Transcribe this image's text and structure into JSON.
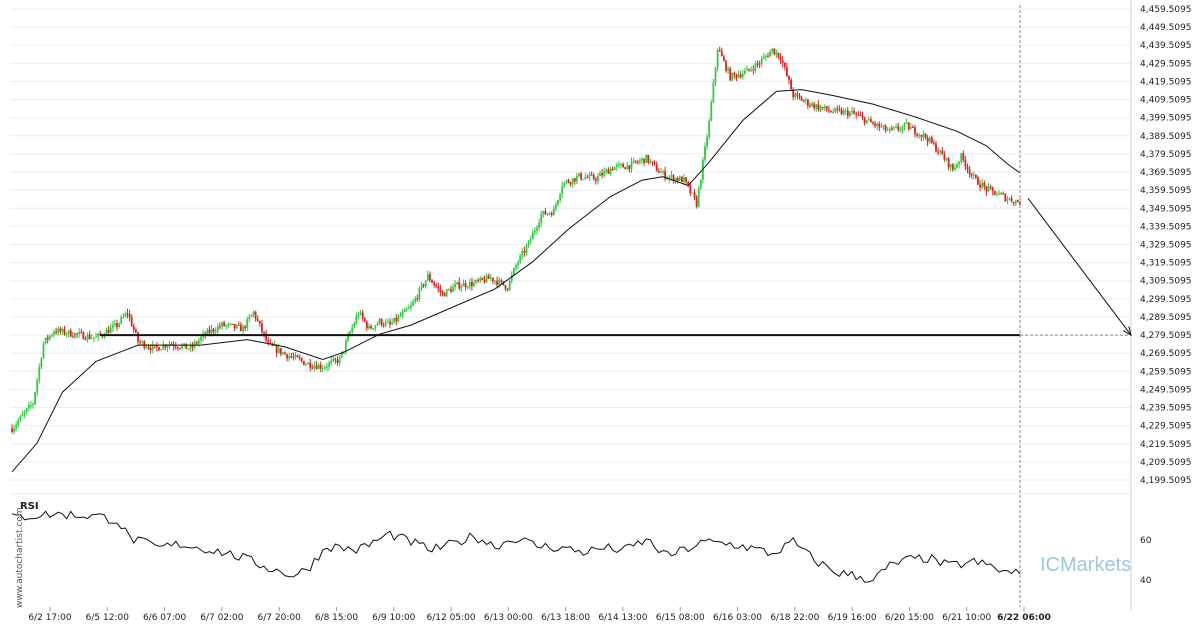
{
  "chart_data": [
    {
      "type": "candlestick",
      "price_axis_labels": [
        "4,459.5095",
        "4,449.5095",
        "4,439.5095",
        "4,429.5095",
        "4,419.5095",
        "4,409.5095",
        "4,399.5095",
        "4,389.5095",
        "4,379.5095",
        "4,369.5095",
        "4,359.5095",
        "4,349.5095",
        "4,339.5095",
        "4,329.5095",
        "4,319.5095",
        "4,309.5095",
        "4,299.5095",
        "4,289.5095",
        "4,279.5095",
        "4,269.5095",
        "4,259.5095",
        "4,249.5095",
        "4,239.5095",
        "4,229.5095",
        "4,219.5095",
        "4,209.5095",
        "4,199.5095"
      ],
      "ylim": [
        4199.5095,
        4459.5095
      ],
      "date_labels": [
        "6/2 17:00",
        "6/5 12:00",
        "6/6 07:00",
        "6/7 02:00",
        "6/7 20:00",
        "6/8 15:00",
        "6/9 10:00",
        "6/12 05:00",
        "6/13 00:00",
        "6/13 18:00",
        "6/14 13:00",
        "6/15 08:00",
        "6/16 03:00",
        "6/18 22:00",
        "6/19 16:00",
        "6/20 15:00",
        "6/21 10:00",
        "6/22 06:00"
      ],
      "current_date_label": "6/22 06:00",
      "price_path": [
        [
          0,
          4228
        ],
        [
          10,
          4242
        ],
        [
          15,
          4275
        ],
        [
          20,
          4282
        ],
        [
          30,
          4280
        ],
        [
          40,
          4278
        ],
        [
          50,
          4285
        ],
        [
          55,
          4292
        ],
        [
          60,
          4276
        ],
        [
          68,
          4272
        ],
        [
          75,
          4275
        ],
        [
          85,
          4272
        ],
        [
          92,
          4280
        ],
        [
          100,
          4285
        ],
        [
          110,
          4283
        ],
        [
          115,
          4292
        ],
        [
          122,
          4274
        ],
        [
          130,
          4269
        ],
        [
          140,
          4264
        ],
        [
          148,
          4262
        ],
        [
          156,
          4266
        ],
        [
          160,
          4278
        ],
        [
          165,
          4292
        ],
        [
          170,
          4283
        ],
        [
          175,
          4287
        ],
        [
          180,
          4285
        ],
        [
          190,
          4295
        ],
        [
          198,
          4312
        ],
        [
          205,
          4302
        ],
        [
          212,
          4307
        ],
        [
          220,
          4308
        ],
        [
          228,
          4311
        ],
        [
          236,
          4306
        ],
        [
          240,
          4318
        ],
        [
          246,
          4330
        ],
        [
          252,
          4346
        ],
        [
          258,
          4348
        ],
        [
          262,
          4363
        ],
        [
          270,
          4367
        ],
        [
          278,
          4366
        ],
        [
          286,
          4372
        ],
        [
          294,
          4373
        ],
        [
          302,
          4377
        ],
        [
          308,
          4370
        ],
        [
          312,
          4367
        ],
        [
          320,
          4365
        ],
        [
          326,
          4352
        ],
        [
          332,
          4397
        ],
        [
          336,
          4438
        ],
        [
          342,
          4422
        ],
        [
          350,
          4425
        ],
        [
          356,
          4430
        ],
        [
          362,
          4437
        ],
        [
          366,
          4433
        ],
        [
          372,
          4412
        ],
        [
          380,
          4407
        ],
        [
          390,
          4403
        ],
        [
          400,
          4402
        ],
        [
          410,
          4396
        ],
        [
          418,
          4392
        ],
        [
          426,
          4395
        ],
        [
          436,
          4388
        ],
        [
          442,
          4380
        ],
        [
          448,
          4371
        ],
        [
          452,
          4378
        ],
        [
          458,
          4366
        ],
        [
          464,
          4360
        ],
        [
          470,
          4357
        ],
        [
          476,
          4354
        ],
        [
          480,
          4353
        ]
      ],
      "moving_average_path": [
        [
          0,
          4204
        ],
        [
          12,
          4220
        ],
        [
          24,
          4248
        ],
        [
          40,
          4265
        ],
        [
          60,
          4274
        ],
        [
          90,
          4274
        ],
        [
          112,
          4277
        ],
        [
          130,
          4273
        ],
        [
          148,
          4266
        ],
        [
          158,
          4270
        ],
        [
          175,
          4280
        ],
        [
          190,
          4285
        ],
        [
          210,
          4295
        ],
        [
          230,
          4305
        ],
        [
          248,
          4320
        ],
        [
          265,
          4338
        ],
        [
          285,
          4356
        ],
        [
          300,
          4365
        ],
        [
          310,
          4367
        ],
        [
          322,
          4362
        ],
        [
          332,
          4375
        ],
        [
          348,
          4398
        ],
        [
          364,
          4414
        ],
        [
          376,
          4415
        ],
        [
          390,
          4412
        ],
        [
          410,
          4407
        ],
        [
          430,
          4400
        ],
        [
          450,
          4392
        ],
        [
          464,
          4384
        ],
        [
          474,
          4374
        ],
        [
          480,
          4369
        ]
      ],
      "projection_path": [
        [
          480,
          4355
        ],
        [
          520,
          4279.5
        ]
      ],
      "horizontal_level": 4279.5095,
      "rsi": {
        "label": "RSI",
        "axis_labels": [
          "60",
          "40"
        ],
        "ylim": [
          30,
          80
        ],
        "path": [
          [
            0,
            71
          ],
          [
            8,
            72
          ],
          [
            20,
            73
          ],
          [
            40,
            72
          ],
          [
            50,
            70
          ],
          [
            56,
            61
          ],
          [
            70,
            56
          ],
          [
            80,
            58
          ],
          [
            90,
            56
          ],
          [
            100,
            54
          ],
          [
            110,
            51
          ],
          [
            125,
            45
          ],
          [
            135,
            42
          ],
          [
            142,
            47
          ],
          [
            150,
            57
          ],
          [
            165,
            55
          ],
          [
            180,
            63
          ],
          [
            190,
            59
          ],
          [
            200,
            55
          ],
          [
            210,
            58
          ],
          [
            220,
            62
          ],
          [
            230,
            57
          ],
          [
            240,
            61
          ],
          [
            250,
            57
          ],
          [
            262,
            56
          ],
          [
            272,
            54
          ],
          [
            282,
            56
          ],
          [
            292,
            55
          ],
          [
            302,
            60
          ],
          [
            312,
            52
          ],
          [
            320,
            55
          ],
          [
            330,
            59
          ],
          [
            342,
            58
          ],
          [
            352,
            56
          ],
          [
            362,
            53
          ],
          [
            372,
            59
          ],
          [
            382,
            50
          ],
          [
            392,
            44
          ],
          [
            402,
            42
          ],
          [
            410,
            40
          ],
          [
            418,
            47
          ],
          [
            426,
            50
          ],
          [
            436,
            51
          ],
          [
            446,
            47
          ],
          [
            458,
            49
          ],
          [
            466,
            47
          ],
          [
            472,
            44
          ],
          [
            480,
            43
          ]
        ]
      }
    }
  ],
  "watermark": {
    "side_text": "www.autochartist.com",
    "brand_text": "ICMarkets"
  },
  "colors": {
    "bull": "#2ecc40",
    "bear": "#e02020",
    "line": "#111111",
    "grid": "#eeeeee",
    "brand": "#9ec7e0"
  }
}
